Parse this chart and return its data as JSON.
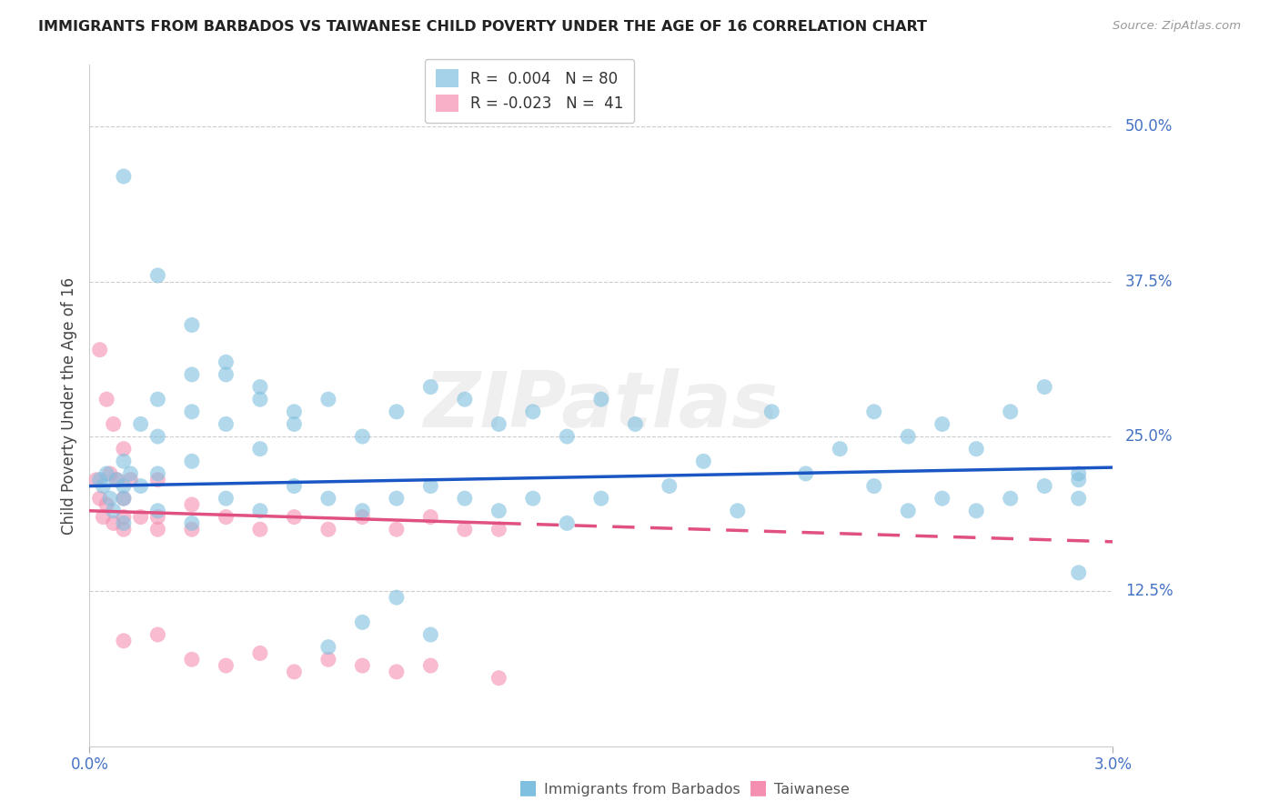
{
  "title": "IMMIGRANTS FROM BARBADOS VS TAIWANESE CHILD POVERTY UNDER THE AGE OF 16 CORRELATION CHART",
  "source": "Source: ZipAtlas.com",
  "ylabel": "Child Poverty Under the Age of 16",
  "ytick_labels": [
    "50.0%",
    "37.5%",
    "25.0%",
    "12.5%"
  ],
  "ytick_values": [
    0.5,
    0.375,
    0.25,
    0.125
  ],
  "xmin": 0.0,
  "xmax": 0.03,
  "ymin": 0.0,
  "ymax": 0.55,
  "blue_color": "#7fbfdf",
  "pink_color": "#f48fb1",
  "blue_trend_color": "#1a56c4",
  "pink_trend_color": "#e05080",
  "axis_label_color": "#4472c4",
  "watermark": "ZIPatlas",
  "legend_blue_label": "R =  0.004   N = 80",
  "legend_pink_label": "R = -0.023   N =  41",
  "bottom_legend_blue": "Immigrants from Barbados",
  "bottom_legend_pink": "Taiwanese",
  "blue_x": [
    0.0003,
    0.0004,
    0.0005,
    0.0006,
    0.0007,
    0.0008,
    0.001,
    0.001,
    0.001,
    0.001,
    0.0012,
    0.0015,
    0.0015,
    0.002,
    0.002,
    0.002,
    0.002,
    0.003,
    0.003,
    0.003,
    0.003,
    0.004,
    0.004,
    0.004,
    0.005,
    0.005,
    0.005,
    0.006,
    0.006,
    0.007,
    0.007,
    0.008,
    0.008,
    0.009,
    0.009,
    0.01,
    0.01,
    0.011,
    0.011,
    0.012,
    0.012,
    0.013,
    0.013,
    0.014,
    0.014,
    0.015,
    0.015,
    0.016,
    0.017,
    0.018,
    0.019,
    0.02,
    0.021,
    0.022,
    0.023,
    0.023,
    0.024,
    0.024,
    0.025,
    0.025,
    0.026,
    0.026,
    0.027,
    0.027,
    0.028,
    0.028,
    0.029,
    0.029,
    0.029,
    0.029,
    0.001,
    0.002,
    0.003,
    0.004,
    0.005,
    0.006,
    0.007,
    0.008,
    0.009,
    0.01
  ],
  "blue_y": [
    0.215,
    0.21,
    0.22,
    0.2,
    0.19,
    0.215,
    0.23,
    0.21,
    0.2,
    0.18,
    0.22,
    0.26,
    0.21,
    0.28,
    0.25,
    0.22,
    0.19,
    0.3,
    0.27,
    0.23,
    0.18,
    0.31,
    0.26,
    0.2,
    0.29,
    0.24,
    0.19,
    0.27,
    0.21,
    0.28,
    0.2,
    0.25,
    0.19,
    0.27,
    0.2,
    0.29,
    0.21,
    0.28,
    0.2,
    0.26,
    0.19,
    0.27,
    0.2,
    0.25,
    0.18,
    0.28,
    0.2,
    0.26,
    0.21,
    0.23,
    0.19,
    0.27,
    0.22,
    0.24,
    0.27,
    0.21,
    0.25,
    0.19,
    0.26,
    0.2,
    0.24,
    0.19,
    0.27,
    0.2,
    0.29,
    0.21,
    0.22,
    0.2,
    0.14,
    0.215,
    0.46,
    0.38,
    0.34,
    0.3,
    0.28,
    0.26,
    0.08,
    0.1,
    0.12,
    0.09
  ],
  "pink_x": [
    0.0002,
    0.0003,
    0.0004,
    0.0005,
    0.0006,
    0.0007,
    0.0008,
    0.001,
    0.001,
    0.001,
    0.001,
    0.0012,
    0.0015,
    0.002,
    0.002,
    0.002,
    0.003,
    0.003,
    0.004,
    0.005,
    0.006,
    0.007,
    0.008,
    0.009,
    0.01,
    0.011,
    0.012,
    0.0003,
    0.0005,
    0.0007,
    0.001,
    0.002,
    0.003,
    0.004,
    0.005,
    0.006,
    0.007,
    0.008,
    0.009,
    0.01,
    0.012
  ],
  "pink_y": [
    0.215,
    0.2,
    0.185,
    0.195,
    0.22,
    0.18,
    0.215,
    0.24,
    0.2,
    0.185,
    0.175,
    0.215,
    0.185,
    0.215,
    0.185,
    0.175,
    0.195,
    0.175,
    0.185,
    0.175,
    0.185,
    0.175,
    0.185,
    0.175,
    0.185,
    0.175,
    0.175,
    0.32,
    0.28,
    0.26,
    0.085,
    0.09,
    0.07,
    0.065,
    0.075,
    0.06,
    0.07,
    0.065,
    0.06,
    0.065,
    0.055
  ]
}
